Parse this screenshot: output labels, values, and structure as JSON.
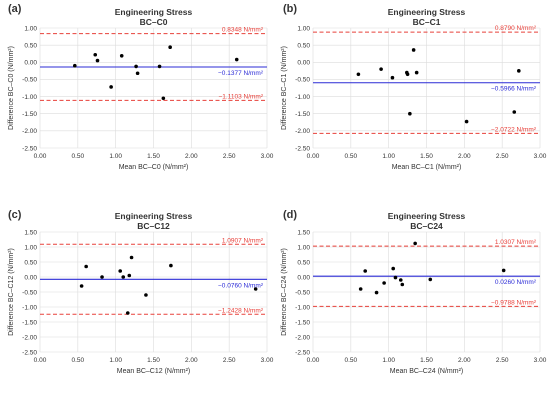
{
  "figure": {
    "colors": {
      "mean_line": "#2b2bd6",
      "loa_line": "#e8403a",
      "points": "#000000",
      "grid": "#dcdcdc",
      "text": "#333333"
    }
  },
  "chart_data": [
    {
      "type": "scatter",
      "panel_label": "(a)",
      "title": "Engineering Stress",
      "subtitle": "BC–C0",
      "xlabel": "Mean BC–C0 (N/mm²)",
      "ylabel": "Difference BC–C0 (N/mm²)",
      "xlim": [
        0,
        3
      ],
      "ylim": [
        -2.5,
        1.0
      ],
      "xticks": [
        "0.00",
        "0.50",
        "1.00",
        "1.50",
        "2.00",
        "2.50",
        "3.00"
      ],
      "yticks": [
        "1.00",
        "0.50",
        "0.00",
        "-0.50",
        "-1.00",
        "-1.50",
        "-2.00",
        "-2.50"
      ],
      "grid": true,
      "mean_diff": -0.1377,
      "mean_label": "−0.1377 N/mm²",
      "upper_loa": 0.8348,
      "upper_label": "0.8348 N/mm²",
      "lower_loa": -1.1103,
      "lower_label": "−1.1103 N/mm²",
      "points": {
        "x": [
          0.46,
          0.73,
          0.76,
          0.94,
          1.08,
          1.27,
          1.29,
          1.58,
          1.63,
          1.72,
          2.6
        ],
        "y": [
          -0.1,
          0.22,
          0.05,
          -0.72,
          0.19,
          -0.12,
          -0.32,
          -0.12,
          -1.05,
          0.44,
          0.08
        ]
      }
    },
    {
      "type": "scatter",
      "panel_label": "(b)",
      "title": "Engineering Stress",
      "subtitle": "BC–C1",
      "xlabel": "Mean BC–C1 (N/mm²)",
      "ylabel": "Difference BC–C1 (N/mm²)",
      "xlim": [
        0,
        3
      ],
      "ylim": [
        -2.5,
        1.0
      ],
      "xticks": [
        "0.00",
        "0.50",
        "1.00",
        "1.50",
        "2.00",
        "2.50",
        "3.00"
      ],
      "yticks": [
        "1.00",
        "0.50",
        "0.00",
        "-0.50",
        "-1.00",
        "-1.50",
        "-2.00",
        "-2.50"
      ],
      "grid": true,
      "mean_diff": -0.5966,
      "mean_label": "−0.5966 N/mm²",
      "upper_loa": 0.879,
      "upper_label": "0.8790 N/mm²",
      "lower_loa": -2.0722,
      "lower_label": "−2.0722 N/mm²",
      "points": {
        "x": [
          0.6,
          0.9,
          1.05,
          1.24,
          1.25,
          1.28,
          1.33,
          1.37,
          2.03,
          2.66,
          2.72
        ],
        "y": [
          -0.35,
          -0.2,
          -0.45,
          -0.3,
          -0.35,
          -1.5,
          0.36,
          -0.3,
          -1.73,
          -1.45,
          -0.25
        ]
      }
    },
    {
      "type": "scatter",
      "panel_label": "(c)",
      "title": "Engineering Stress",
      "subtitle": "BC–C12",
      "xlabel": "Mean BC–C12 (N/mm²)",
      "ylabel": "Difference BC–C12 (N/mm²)",
      "xlim": [
        0,
        3
      ],
      "ylim": [
        -2.5,
        1.5
      ],
      "xticks": [
        "0.00",
        "0.50",
        "1.00",
        "1.50",
        "2.00",
        "2.50",
        "3.00"
      ],
      "yticks": [
        "1.50",
        "1.00",
        "0.50",
        "0.00",
        "-0.50",
        "-1.00",
        "-1.50",
        "-2.00",
        "-2.50"
      ],
      "grid": true,
      "mean_diff": -0.076,
      "mean_label": "−0.0760 N/mm²",
      "upper_loa": 1.0907,
      "upper_label": "1.0907 N/mm²",
      "lower_loa": -1.2428,
      "lower_label": "−1.2428 N/mm²",
      "points": {
        "x": [
          0.55,
          0.61,
          0.82,
          1.06,
          1.1,
          1.16,
          1.18,
          1.21,
          1.4,
          1.73,
          2.85
        ],
        "y": [
          -0.3,
          0.35,
          0.0,
          0.2,
          0.0,
          -1.2,
          0.05,
          0.65,
          -0.6,
          0.38,
          -0.4
        ]
      }
    },
    {
      "type": "scatter",
      "panel_label": "(d)",
      "title": "Engineering Stress",
      "subtitle": "BC–C24",
      "xlabel": "Mean BC–C24 (N/mm²)",
      "ylabel": "Difference BC–C24 (N/mm²)",
      "xlim": [
        0,
        3
      ],
      "ylim": [
        -2.5,
        1.5
      ],
      "xticks": [
        "0.00",
        "0.50",
        "1.00",
        "1.50",
        "2.00",
        "2.50",
        "3.00"
      ],
      "yticks": [
        "1.50",
        "1.00",
        "0.50",
        "0.00",
        "-0.50",
        "-1.00",
        "-1.50",
        "-2.00",
        "-2.50"
      ],
      "grid": true,
      "mean_diff": 0.026,
      "mean_label": "0.0260 N/mm²",
      "upper_loa": 1.0307,
      "upper_label": "1.0307 N/mm²",
      "lower_loa": -0.9788,
      "lower_label": "−0.9788 N/mm²",
      "points": {
        "x": [
          0.63,
          0.69,
          0.84,
          0.94,
          1.06,
          1.09,
          1.16,
          1.18,
          1.35,
          1.55,
          2.52
        ],
        "y": [
          -0.4,
          0.2,
          -0.52,
          -0.2,
          0.28,
          -0.02,
          -0.1,
          -0.25,
          1.12,
          -0.08,
          0.22
        ]
      }
    }
  ]
}
